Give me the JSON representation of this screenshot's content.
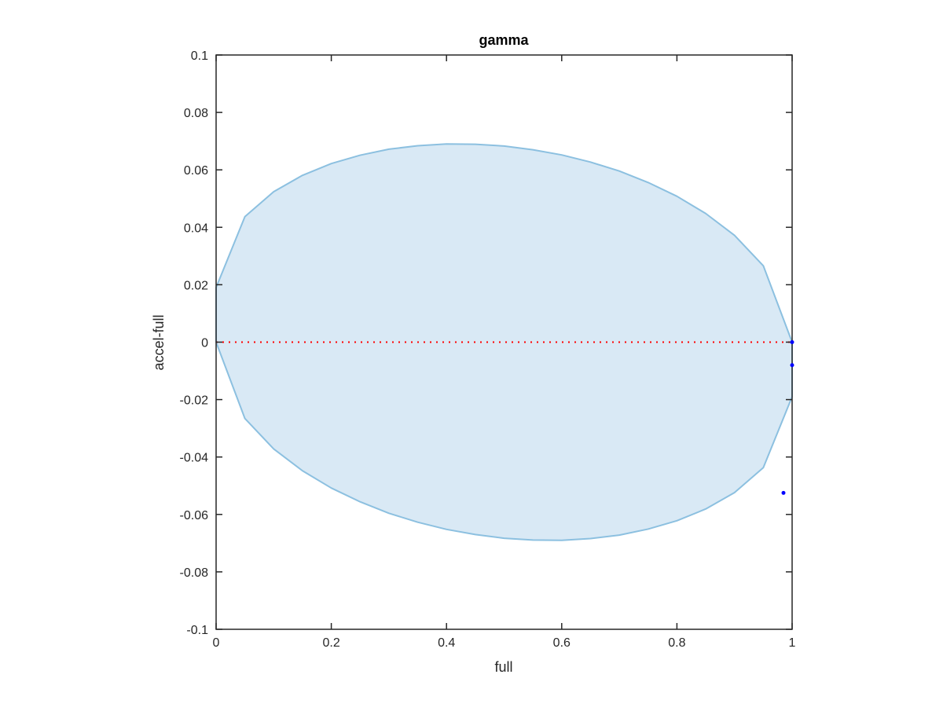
{
  "chart_data": {
    "type": "area",
    "title": "gamma",
    "xlabel": "full",
    "ylabel": "accel-full",
    "xlim": [
      0,
      1
    ],
    "ylim": [
      -0.1,
      0.1
    ],
    "xticks": [
      0,
      0.2,
      0.4,
      0.6,
      0.8,
      1
    ],
    "xtick_labels": [
      "0",
      "0.2",
      "0.4",
      "0.6",
      "0.8",
      "1"
    ],
    "yticks": [
      -0.1,
      -0.08,
      -0.06,
      -0.04,
      -0.02,
      0,
      0.02,
      0.04,
      0.06,
      0.08,
      0.1
    ],
    "ytick_labels": [
      "-0.1",
      "-0.08",
      "-0.06",
      "-0.04",
      "-0.02",
      "0",
      "0.02",
      "0.04",
      "0.06",
      "0.08",
      "0.1"
    ],
    "grid": false,
    "region": {
      "x": [
        0,
        0.05,
        0.1,
        0.15,
        0.2,
        0.25,
        0.3,
        0.35,
        0.4,
        0.45,
        0.5,
        0.55,
        0.6,
        0.65,
        0.7,
        0.75,
        0.8,
        0.85,
        0.9,
        0.95,
        1
      ],
      "upper": [
        0.019,
        0.0437,
        0.0524,
        0.0581,
        0.0622,
        0.0651,
        0.0672,
        0.0684,
        0.069,
        0.0689,
        0.0683,
        0.067,
        0.0652,
        0.0627,
        0.0596,
        0.0556,
        0.0508,
        0.0448,
        0.0372,
        0.0266,
        0
      ],
      "lower": [
        0,
        -0.0266,
        -0.0372,
        -0.0448,
        -0.0508,
        -0.0556,
        -0.0596,
        -0.0627,
        -0.0652,
        -0.067,
        -0.0683,
        -0.0689,
        -0.069,
        -0.0684,
        -0.0672,
        -0.0651,
        -0.0622,
        -0.0581,
        -0.0524,
        -0.0437,
        -0.019
      ],
      "fill_color": "#d9e9f5",
      "edge_color": "#8cc0e0"
    },
    "reference_line": {
      "y": 0,
      "x_range": [
        0,
        1
      ],
      "style": "dotted",
      "color": "#ff0000"
    },
    "points": {
      "color": "#0000ff",
      "x": [
        1,
        1,
        0.985
      ],
      "y": [
        0,
        -0.008,
        -0.0525
      ]
    }
  }
}
